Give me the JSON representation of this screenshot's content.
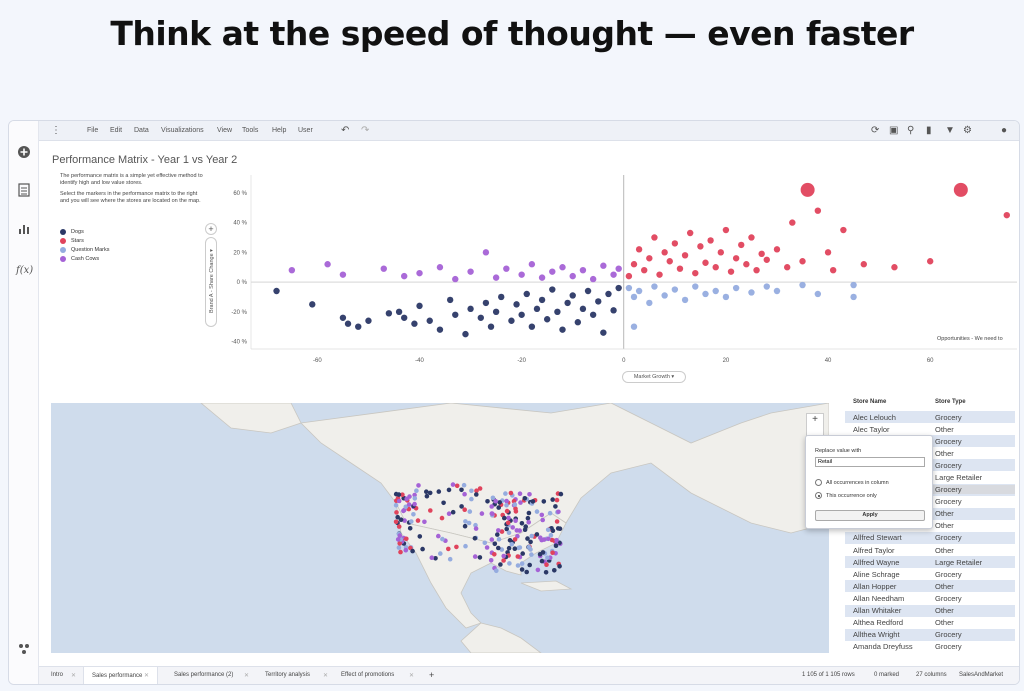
{
  "hero": {
    "title": "Think at the speed of thought — even faster"
  },
  "menu": {
    "items": [
      "File",
      "Edit",
      "Data",
      "Visualizations",
      "View",
      "Tools",
      "Help",
      "User"
    ]
  },
  "colors": {
    "dogs": "#2b3866",
    "stars": "#e0435c",
    "question_marks": "#95acdf",
    "cash_cows": "#a562d6"
  },
  "performance": {
    "title": "Performance Matrix - Year 1 vs Year 2",
    "description": "The performance matrix is a simple yet effective method to identify high and low value stores.",
    "instruction": "Select the markers in the performance matrix to the right and you will see where the stores are located on the map.",
    "legend": [
      "Dogs",
      "Stars",
      "Question Marks",
      "Cash Cows"
    ],
    "y_axis_selector": "Brand A - Share Change ▾",
    "x_axis_selector": "Market Growth ▾",
    "note": "Opportunities - We need to"
  },
  "chart_data": {
    "type": "scatter",
    "title": "Performance Matrix - Year 1 vs Year 2",
    "xlabel": "Market Growth",
    "ylabel": "Brand A - Share Change",
    "xlim": [
      -73,
      77
    ],
    "ylim": [
      -45,
      72
    ],
    "x_ticks": [
      "-60",
      "-40",
      "-20",
      "0",
      "20",
      "40",
      "60"
    ],
    "y_ticks": [
      "60 %",
      "40 %",
      "20 %",
      "0 %",
      "-20 %",
      "-40 %"
    ],
    "series": [
      {
        "name": "Dogs",
        "points": [
          [
            -68,
            -6
          ],
          [
            -61,
            -15
          ],
          [
            -55,
            -24
          ],
          [
            -54,
            -28
          ],
          [
            -52,
            -30
          ],
          [
            -50,
            -26
          ],
          [
            -46,
            -21
          ],
          [
            -44,
            -20
          ],
          [
            -43,
            -24
          ],
          [
            -41,
            -28
          ],
          [
            -40,
            -16
          ],
          [
            -38,
            -26
          ],
          [
            -36,
            -32
          ],
          [
            -34,
            -12
          ],
          [
            -33,
            -22
          ],
          [
            -31,
            -35
          ],
          [
            -30,
            -18
          ],
          [
            -28,
            -24
          ],
          [
            -27,
            -14
          ],
          [
            -26,
            -30
          ],
          [
            -25,
            -20
          ],
          [
            -24,
            -10
          ],
          [
            -22,
            -26
          ],
          [
            -21,
            -15
          ],
          [
            -20,
            -22
          ],
          [
            -19,
            -8
          ],
          [
            -18,
            -30
          ],
          [
            -17,
            -18
          ],
          [
            -16,
            -12
          ],
          [
            -15,
            -25
          ],
          [
            -14,
            -5
          ],
          [
            -13,
            -20
          ],
          [
            -12,
            -32
          ],
          [
            -11,
            -14
          ],
          [
            -10,
            -9
          ],
          [
            -9,
            -27
          ],
          [
            -8,
            -18
          ],
          [
            -7,
            -6
          ],
          [
            -6,
            -22
          ],
          [
            -5,
            -13
          ],
          [
            -4,
            -34
          ],
          [
            -3,
            -8
          ],
          [
            -2,
            -19
          ],
          [
            -1,
            -4
          ]
        ]
      },
      {
        "name": "Stars",
        "points": [
          [
            1,
            4
          ],
          [
            2,
            12
          ],
          [
            3,
            22
          ],
          [
            4,
            8
          ],
          [
            5,
            16
          ],
          [
            6,
            30
          ],
          [
            7,
            5
          ],
          [
            8,
            20
          ],
          [
            9,
            14
          ],
          [
            10,
            26
          ],
          [
            11,
            9
          ],
          [
            12,
            18
          ],
          [
            13,
            33
          ],
          [
            14,
            6
          ],
          [
            15,
            24
          ],
          [
            16,
            13
          ],
          [
            17,
            28
          ],
          [
            18,
            10
          ],
          [
            19,
            20
          ],
          [
            20,
            35
          ],
          [
            21,
            7
          ],
          [
            22,
            16
          ],
          [
            23,
            25
          ],
          [
            24,
            12
          ],
          [
            25,
            30
          ],
          [
            26,
            8
          ],
          [
            27,
            19
          ],
          [
            28,
            15
          ],
          [
            30,
            22
          ],
          [
            32,
            10
          ],
          [
            33,
            40
          ],
          [
            35,
            14
          ],
          [
            36,
            62
          ],
          [
            38,
            48
          ],
          [
            40,
            20
          ],
          [
            41,
            8
          ],
          [
            43,
            35
          ],
          [
            47,
            12
          ],
          [
            53,
            10
          ],
          [
            60,
            14
          ],
          [
            66,
            62
          ],
          [
            75,
            45
          ]
        ]
      },
      {
        "name": "Question Marks",
        "points": [
          [
            1,
            -4
          ],
          [
            2,
            -10
          ],
          [
            3,
            -6
          ],
          [
            5,
            -14
          ],
          [
            6,
            -3
          ],
          [
            8,
            -9
          ],
          [
            10,
            -5
          ],
          [
            12,
            -12
          ],
          [
            14,
            -3
          ],
          [
            16,
            -8
          ],
          [
            18,
            -6
          ],
          [
            20,
            -10
          ],
          [
            22,
            -4
          ],
          [
            25,
            -7
          ],
          [
            28,
            -3
          ],
          [
            30,
            -6
          ],
          [
            35,
            -2
          ],
          [
            38,
            -8
          ],
          [
            45,
            -2
          ],
          [
            45,
            -10
          ],
          [
            2,
            -30
          ]
        ]
      },
      {
        "name": "Cash Cows",
        "points": [
          [
            -65,
            8
          ],
          [
            -58,
            12
          ],
          [
            -55,
            5
          ],
          [
            -47,
            9
          ],
          [
            -43,
            4
          ],
          [
            -40,
            6
          ],
          [
            -36,
            10
          ],
          [
            -33,
            2
          ],
          [
            -30,
            7
          ],
          [
            -27,
            20
          ],
          [
            -25,
            3
          ],
          [
            -23,
            9
          ],
          [
            -20,
            5
          ],
          [
            -18,
            12
          ],
          [
            -16,
            3
          ],
          [
            -14,
            7
          ],
          [
            -12,
            10
          ],
          [
            -10,
            4
          ],
          [
            -8,
            8
          ],
          [
            -6,
            2
          ],
          [
            -4,
            11
          ],
          [
            -2,
            5
          ],
          [
            -1,
            9
          ]
        ]
      }
    ]
  },
  "map": {
    "zoom_in": "+"
  },
  "grid": {
    "headers": [
      "Store Name",
      "Store Type"
    ],
    "rows": [
      [
        "Alec Lelouch",
        "Grocery"
      ],
      [
        "Alec Taylor",
        "Other"
      ],
      [
        "",
        "Grocery"
      ],
      [
        "",
        "Other"
      ],
      [
        "",
        "Grocery"
      ],
      [
        "",
        "Large Retailer"
      ],
      [
        "",
        "Grocery"
      ],
      [
        "",
        "Grocery"
      ],
      [
        "",
        "Other"
      ],
      [
        "",
        "Other"
      ],
      [
        "Allfred Stewart",
        "Grocery"
      ],
      [
        "Alfred Taylor",
        "Other"
      ],
      [
        "Allfred Wayne",
        "Large Retailer"
      ],
      [
        "Aline Schrage",
        "Grocery"
      ],
      [
        "Allan Hopper",
        "Other"
      ],
      [
        "Allan Needham",
        "Grocery"
      ],
      [
        "Allan Whitaker",
        "Other"
      ],
      [
        "Althea Redford",
        "Other"
      ],
      [
        "Allthea Wright",
        "Grocery"
      ],
      [
        "Amanda Dreyfuss",
        "Grocery"
      ]
    ]
  },
  "popup": {
    "label": "Replace value with",
    "value": "Retail",
    "option_all": "All occurrences in column",
    "option_this": "This occurrence only",
    "apply": "Apply"
  },
  "tabs": [
    "Intro",
    "Sales performance",
    "Sales performance (2)",
    "Territory analysis",
    "Effect of promotions"
  ],
  "status": {
    "rows": "1 105 of 1 105 rows",
    "marked": "0 marked",
    "columns": "27 columns",
    "source": "SalesAndMarket"
  }
}
